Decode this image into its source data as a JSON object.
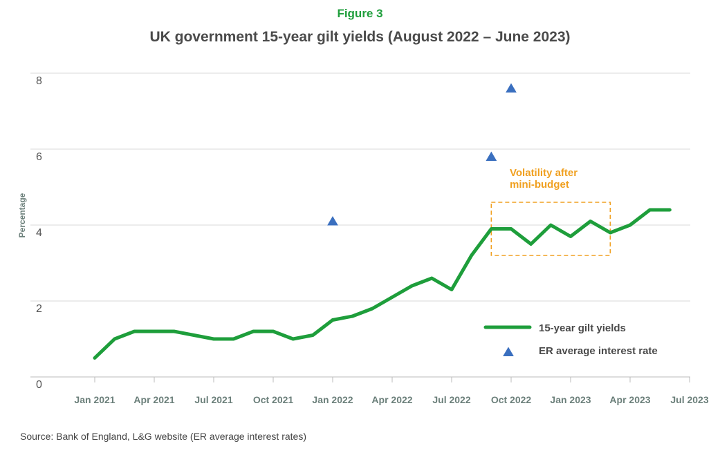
{
  "figure_label": "Figure 3",
  "source": "Source: Bank of England, L&G website (ER average interest rates)",
  "colors": {
    "gilt_line": "#1e9e3b",
    "er_marker": "#3a6fbf",
    "annotation": "#f0a020",
    "grid": "#d9d9d9",
    "axis": "#bbbbbb"
  },
  "chart_data": {
    "type": "line",
    "title": "UK government 15-year gilt yields (August 2022 – June 2023)",
    "xlabel": "",
    "ylabel": "Percentage",
    "ylim": [
      0,
      8
    ],
    "yticks": [
      0,
      2,
      4,
      6,
      8
    ],
    "x_ticks": [
      "2021-01",
      "2021-04",
      "2021-07",
      "2021-10",
      "2022-01",
      "2022-04",
      "2022-07",
      "2022-10",
      "2023-01",
      "2023-04",
      "2023-07"
    ],
    "x_tick_labels": [
      "Jan 2021",
      "Apr 2021",
      "Jul 2021",
      "Oct 2021",
      "Jan 2022",
      "Apr 2022",
      "Jul 2022",
      "Oct 2022",
      "Jan 2023",
      "Apr 2023",
      "Jul 2023"
    ],
    "grid": "horizontal",
    "legend_position": "bottom-right",
    "series": [
      {
        "name": "15-year gilt yields",
        "kind": "line",
        "x": [
          "2021-01",
          "2021-02",
          "2021-03",
          "2021-04",
          "2021-05",
          "2021-06",
          "2021-07",
          "2021-08",
          "2021-09",
          "2021-10",
          "2021-11",
          "2021-12",
          "2022-01",
          "2022-02",
          "2022-03",
          "2022-04",
          "2022-05",
          "2022-06",
          "2022-07",
          "2022-08",
          "2022-09",
          "2022-10",
          "2022-11",
          "2022-12",
          "2023-01",
          "2023-02",
          "2023-03",
          "2023-04",
          "2023-05",
          "2023-06"
        ],
        "y": [
          0.5,
          1.0,
          1.2,
          1.2,
          1.2,
          1.1,
          1.0,
          1.0,
          1.2,
          1.2,
          1.0,
          1.1,
          1.5,
          1.6,
          1.8,
          2.1,
          2.4,
          2.6,
          2.3,
          3.2,
          3.9,
          3.9,
          3.5,
          4.0,
          3.7,
          4.1,
          3.8,
          4.0,
          4.4,
          4.4
        ]
      },
      {
        "name": "ER average interest rate",
        "kind": "scatter",
        "marker": "triangle",
        "x": [
          "2022-01",
          "2022-09",
          "2022-10"
        ],
        "y": [
          4.1,
          5.8,
          7.6
        ]
      }
    ],
    "annotations": [
      {
        "text_lines": [
          "Volatility after",
          "mini-budget"
        ],
        "box_x": [
          "2022-09",
          "2023-03"
        ],
        "box_y": [
          3.2,
          4.6
        ]
      }
    ]
  }
}
